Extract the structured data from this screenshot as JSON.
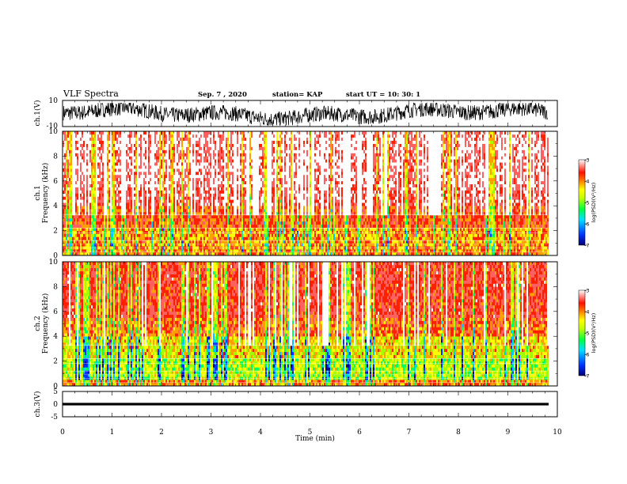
{
  "header": {
    "title": "VLF Spectra",
    "date": "Sep. 7 , 2020",
    "station": "station= KAP",
    "start": "start  UT  =   10: 30: 1"
  },
  "chart_data": [
    {
      "type": "line",
      "name": "ch1-waveform",
      "ylabel": "ch.1(V)",
      "ylim": [
        -10,
        10
      ],
      "ytick_labels": [
        "10",
        "-10"
      ],
      "xlim": [
        0,
        10
      ],
      "amplitude_range": [
        -9,
        8
      ]
    },
    {
      "type": "heatmap",
      "name": "ch1-spectrogram",
      "ylabel_line1": "ch.1",
      "ylabel_line2": "Frequency  (kHz)",
      "ylim": [
        0,
        10
      ],
      "ytick_labels": [
        "0",
        "2",
        "4",
        "6",
        "8",
        "10"
      ],
      "xlim": [
        0,
        10
      ],
      "data_extent_x": [
        0,
        9.8
      ],
      "colorbar": {
        "label": "log(PSD)(V²/Hz)",
        "range": [
          -7,
          -3
        ],
        "tick_labels": [
          "-3",
          "-4",
          "-5",
          "-6",
          "-7"
        ]
      }
    },
    {
      "type": "heatmap",
      "name": "ch2-spectrogram",
      "ylabel_line1": "ch.2",
      "ylabel_line2": "Frequency  (kHz)",
      "ylim": [
        0,
        10
      ],
      "ytick_labels": [
        "0",
        "2",
        "4",
        "6",
        "8",
        "10"
      ],
      "xlim": [
        0,
        10
      ],
      "data_extent_x": [
        0,
        9.8
      ],
      "colorbar": {
        "label": "log(PSD)(V²/Hz)",
        "range": [
          -7,
          -3
        ],
        "tick_labels": [
          "-3",
          "-4",
          "-5",
          "-6",
          "-7"
        ]
      }
    },
    {
      "type": "line",
      "name": "ch3-waveform",
      "ylabel": "ch.3(V)",
      "ylim": [
        -5,
        5
      ],
      "ytick_labels": [
        "5",
        "0",
        "-5"
      ],
      "xlim": [
        0,
        10
      ],
      "band": [
        -0.5,
        0.5
      ],
      "xlabel": "Time  (min)",
      "xtick_labels": [
        "0",
        "1",
        "2",
        "3",
        "4",
        "5",
        "6",
        "7",
        "8",
        "9",
        "10"
      ]
    }
  ],
  "colors": {
    "scale": [
      "#000090",
      "#0030ff",
      "#00c8ff",
      "#00ff60",
      "#a0ff00",
      "#ffff00",
      "#ffa000",
      "#ff2000",
      "#ff6060",
      "#ffffff"
    ],
    "axis": "#000000"
  }
}
